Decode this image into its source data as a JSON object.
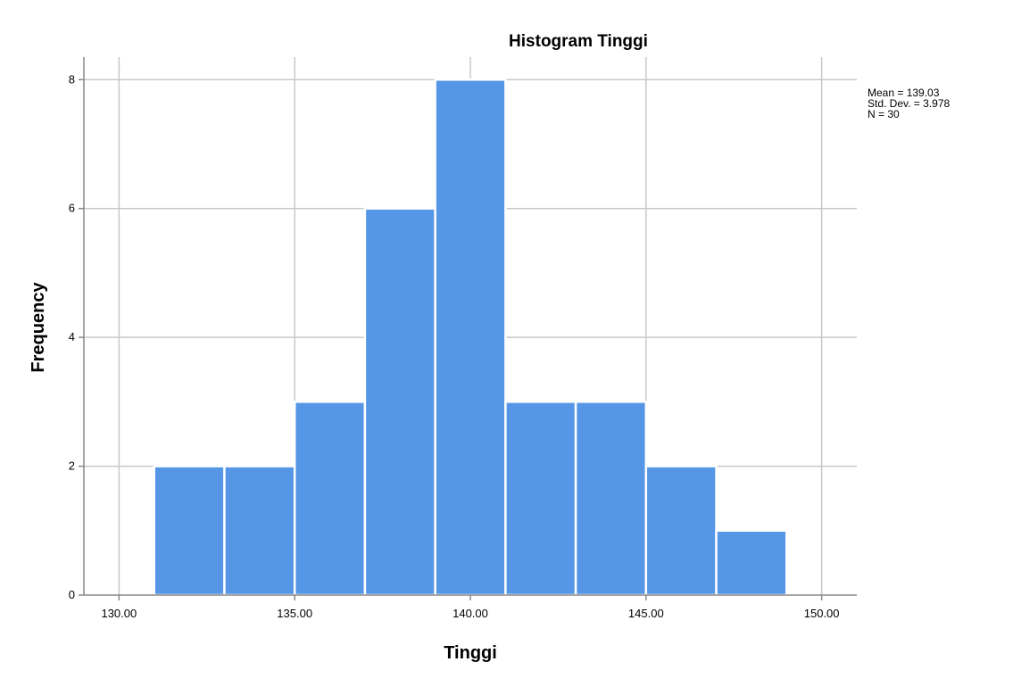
{
  "chart_data": {
    "type": "bar",
    "title": "Histogram Tinggi",
    "xlabel": "Tinggi",
    "ylabel": "Frequency",
    "bins": [
      {
        "start": 131,
        "end": 133,
        "count": 2
      },
      {
        "start": 133,
        "end": 135,
        "count": 2
      },
      {
        "start": 135,
        "end": 137,
        "count": 3
      },
      {
        "start": 137,
        "end": 139,
        "count": 6
      },
      {
        "start": 139,
        "end": 141,
        "count": 8
      },
      {
        "start": 141,
        "end": 143,
        "count": 3
      },
      {
        "start": 143,
        "end": 145,
        "count": 3
      },
      {
        "start": 145,
        "end": 147,
        "count": 2
      },
      {
        "start": 147,
        "end": 149,
        "count": 1
      }
    ],
    "xlim": [
      129,
      151
    ],
    "ylim": [
      0,
      8.35
    ],
    "x_ticks": [
      130,
      135,
      140,
      145,
      150
    ],
    "x_tick_labels": [
      "130.00",
      "135.00",
      "140.00",
      "145.00",
      "150.00"
    ],
    "y_ticks": [
      0,
      2,
      4,
      6,
      8
    ],
    "y_tick_labels": [
      "0",
      "2",
      "4",
      "6",
      "8"
    ],
    "grid": true,
    "bar_color": "#5596e6",
    "stats": {
      "mean": "Mean = 139.03",
      "std_dev": "Std. Dev. = 3.978",
      "n": "N = 30"
    }
  }
}
